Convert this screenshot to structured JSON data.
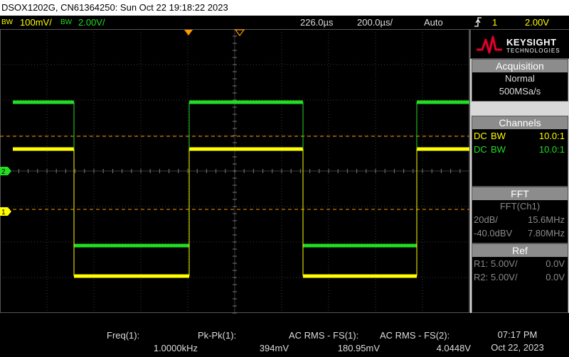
{
  "title_bar": {
    "text": "DSOX1202G, CN61364250: Sun Oct 22 19:18:22 2023"
  },
  "status": {
    "ch1_bw": "BW",
    "ch1_scale": "100mV/",
    "ch2_bw": "BW",
    "ch2_scale": "2.00V/",
    "time_offset": "226.0µs",
    "time_scale": "200.0µs/",
    "trigger_mode": "Auto",
    "trigger_source": "1",
    "trigger_level": "2.00V",
    "trigger_icon": "rising-edge-trigger-icon"
  },
  "brand": {
    "name": "KEYSIGHT",
    "sub": "TECHNOLOGIES"
  },
  "acquisition": {
    "header": "Acquisition",
    "mode": "Normal",
    "rate": "500MSa/s"
  },
  "channels": {
    "header": "Channels",
    "items": [
      {
        "coupling": "DC",
        "bw": "BW",
        "probe": "10.0:1",
        "color": "#ffff00"
      },
      {
        "coupling": "DC",
        "bw": "BW",
        "probe": "10.0:1",
        "color": "#22dd22"
      }
    ]
  },
  "fft": {
    "header": "FFT",
    "source": "FFT(Ch1)",
    "scale": "20dB/",
    "span": "15.6MHz",
    "offset": "-40.0dBV",
    "center": "7.80MHz"
  },
  "ref": {
    "header": "Ref",
    "items": [
      {
        "name": "R1:",
        "scale": "5.00V/",
        "offset": "0.0V"
      },
      {
        "name": "R2:",
        "scale": "5.00V/",
        "offset": "0.0V"
      }
    ]
  },
  "ground_markers": {
    "ch2": "2",
    "ch1": "1"
  },
  "measurements": [
    {
      "label": "Freq(1):",
      "value": "1.0000kHz"
    },
    {
      "label": "Pk-Pk(1):",
      "value": "394mV"
    },
    {
      "label": "AC RMS - FS(1):",
      "value": "180.95mV"
    },
    {
      "label": "AC RMS - FS(2):",
      "value": "4.0448V"
    }
  ],
  "clock": {
    "time": "07:17 PM",
    "date": "Oct 22, 2023"
  },
  "colors": {
    "ch1": "#ffff00",
    "ch2": "#22dd22",
    "trigger": "#ff9900",
    "grid": "#555555",
    "panel_header": "#8c8c8c"
  }
}
